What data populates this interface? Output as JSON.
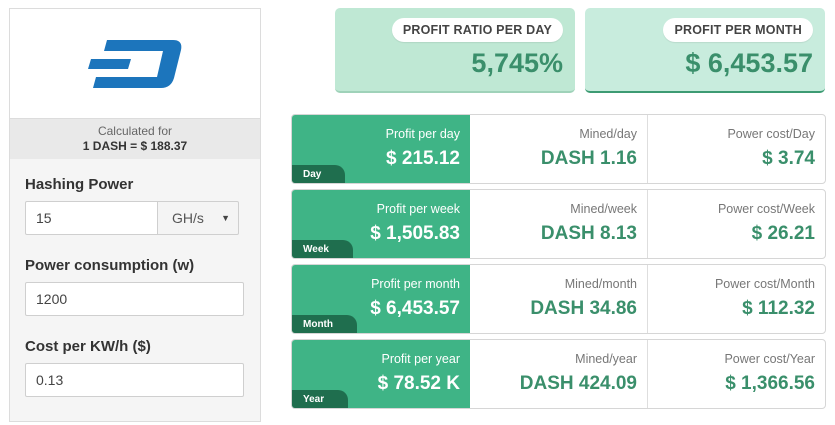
{
  "brand": {
    "logo_name": "dash-logo",
    "color": "#1c75bc"
  },
  "calculated": {
    "label": "Calculated for",
    "rate": "1 DASH = $ 188.37"
  },
  "form": {
    "hashing_label": "Hashing Power",
    "hashing_value": "15",
    "hashing_unit": "GH/s",
    "power_label": "Power consumption (w)",
    "power_value": "1200",
    "cost_label": "Cost per KW/h ($)",
    "cost_value": "0.13"
  },
  "summary": {
    "ratio_label": "PROFIT RATIO PER DAY",
    "ratio_value": "5,745%",
    "month_label": "PROFIT PER MONTH",
    "month_value": "$ 6,453.57"
  },
  "rows": [
    {
      "period": "Day",
      "profit_label": "Profit per day",
      "profit": "$ 215.12",
      "mined_label": "Mined/day",
      "mined": "DASH 1.16",
      "power_label": "Power cost/Day",
      "power": "$ 3.74"
    },
    {
      "period": "Week",
      "profit_label": "Profit per week",
      "profit": "$ 1,505.83",
      "mined_label": "Mined/week",
      "mined": "DASH 8.13",
      "power_label": "Power cost/Week",
      "power": "$ 26.21"
    },
    {
      "period": "Month",
      "profit_label": "Profit per month",
      "profit": "$ 6,453.57",
      "mined_label": "Mined/month",
      "mined": "DASH 34.86",
      "power_label": "Power cost/Month",
      "power": "$ 112.32"
    },
    {
      "period": "Year",
      "profit_label": "Profit per year",
      "profit": "$ 78.52 K",
      "mined_label": "Mined/year",
      "mined": "DASH 424.09",
      "power_label": "Power cost/Year",
      "power": "$ 1,366.56"
    }
  ],
  "colors": {
    "accent": "#3fb486",
    "accent_dark": "#1f6e4e",
    "value_green": "#3a8f6b",
    "summary_bg": "#c8ecdd"
  }
}
